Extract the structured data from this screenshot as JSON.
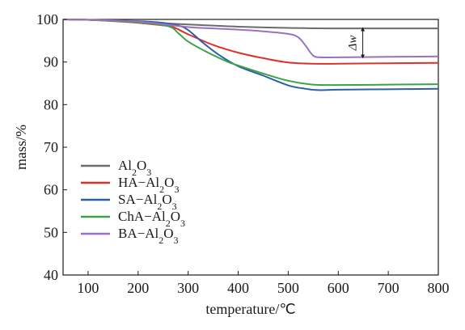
{
  "chart_data": {
    "type": "line",
    "xlabel": "temperature/℃",
    "ylabel": "mass/%",
    "xlim": [
      50,
      800
    ],
    "ylim": [
      40,
      100
    ],
    "xticks": [
      100,
      200,
      300,
      400,
      500,
      600,
      700,
      800
    ],
    "yticks": [
      40,
      50,
      60,
      70,
      80,
      90,
      100
    ],
    "grid": false,
    "legend_position": "center-left",
    "series": [
      {
        "name": "Al2O3",
        "label_parts": [
          [
            "Al",
            "n"
          ],
          [
            "2",
            "sub"
          ],
          [
            "O",
            "n"
          ],
          [
            "3",
            "sub"
          ]
        ],
        "color": "#6b6b6b",
        "x": [
          50,
          100,
          200,
          300,
          400,
          500,
          600,
          700,
          800
        ],
        "y": [
          100,
          99.9,
          99.4,
          98.8,
          98.3,
          98.0,
          97.9,
          97.9,
          97.9
        ]
      },
      {
        "name": "HA-Al2O3",
        "label_parts": [
          [
            "HA−Al",
            "n"
          ],
          [
            "2",
            "sub"
          ],
          [
            "O",
            "n"
          ],
          [
            "3",
            "sub"
          ]
        ],
        "color": "#e0302e",
        "x": [
          50,
          100,
          150,
          200,
          250,
          270,
          300,
          350,
          400,
          450,
          500,
          550,
          600,
          700,
          800
        ],
        "y": [
          100,
          99.9,
          99.6,
          99.2,
          98.6,
          98.2,
          96.5,
          94.0,
          92.2,
          90.9,
          89.9,
          89.6,
          89.6,
          89.7,
          89.8
        ]
      },
      {
        "name": "SA-Al2O3",
        "label_parts": [
          [
            "SA−Al",
            "n"
          ],
          [
            "2",
            "sub"
          ],
          [
            "O",
            "n"
          ],
          [
            "3",
            "sub"
          ]
        ],
        "color": "#2b5fa6",
        "x": [
          50,
          100,
          200,
          250,
          280,
          300,
          330,
          360,
          400,
          450,
          500,
          530,
          560,
          600,
          700,
          800
        ],
        "y": [
          100,
          99.9,
          99.6,
          99.2,
          98.6,
          97.5,
          94.5,
          91.8,
          89.0,
          86.8,
          84.5,
          83.8,
          83.4,
          83.5,
          83.6,
          83.7
        ]
      },
      {
        "name": "ChA-Al2O3",
        "label_parts": [
          [
            "ChA−Al",
            "n"
          ],
          [
            "2",
            "sub"
          ],
          [
            "O",
            "n"
          ],
          [
            "3",
            "sub"
          ]
        ],
        "color": "#3aa34a",
        "x": [
          50,
          100,
          200,
          260,
          280,
          300,
          340,
          380,
          400,
          450,
          500,
          550,
          600,
          700,
          800
        ],
        "y": [
          100,
          99.9,
          99.3,
          98.4,
          96.8,
          94.8,
          92.2,
          90.0,
          89.2,
          87.3,
          85.6,
          84.7,
          84.6,
          84.7,
          84.8
        ]
      },
      {
        "name": "BA-Al2O3",
        "label_parts": [
          [
            "BA−Al",
            "n"
          ],
          [
            "2",
            "sub"
          ],
          [
            "O",
            "n"
          ],
          [
            "3",
            "sub"
          ]
        ],
        "color": "#9b6fc2",
        "x": [
          50,
          100,
          200,
          300,
          350,
          400,
          450,
          500,
          520,
          535,
          550,
          565,
          600,
          700,
          800
        ],
        "y": [
          100,
          99.9,
          99.5,
          98.2,
          97.9,
          97.6,
          97.2,
          96.6,
          95.8,
          93.8,
          91.5,
          91.1,
          91.1,
          91.2,
          91.3
        ]
      }
    ],
    "annotations": [
      {
        "text": "Δw",
        "x": 649,
        "y_top": 97.9,
        "y_bottom": 91.1
      }
    ]
  }
}
